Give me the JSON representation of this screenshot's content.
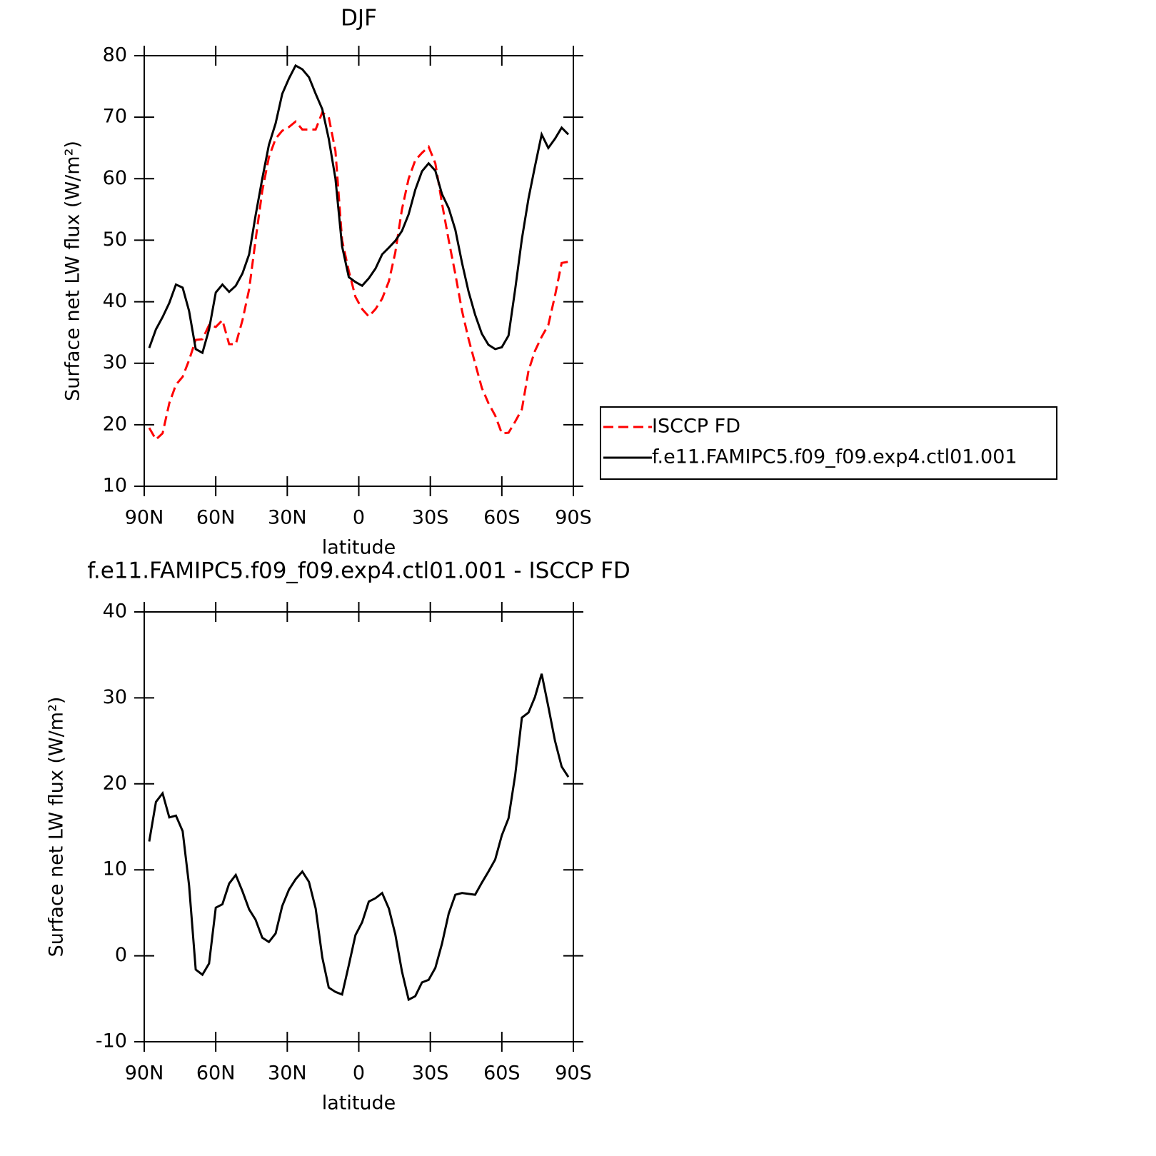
{
  "chart_data": [
    {
      "type": "line",
      "title": "DJF",
      "xlabel": "latitude",
      "ylabel": "Surface net LW flux (W/m²)",
      "x": [
        87.9,
        85.1,
        82.3,
        79.5,
        76.7,
        73.9,
        71.2,
        68.4,
        65.6,
        62.8,
        60.0,
        57.2,
        54.4,
        51.6,
        48.8,
        46.0,
        43.3,
        40.5,
        37.7,
        34.9,
        32.1,
        29.3,
        26.5,
        23.7,
        20.9,
        18.1,
        15.3,
        12.6,
        9.8,
        7.0,
        4.2,
        1.4,
        -1.4,
        -4.2,
        -7.0,
        -9.8,
        -12.6,
        -15.3,
        -18.1,
        -20.9,
        -23.7,
        -26.5,
        -29.3,
        -32.1,
        -34.9,
        -37.7,
        -40.5,
        -43.3,
        -46.0,
        -48.8,
        -51.6,
        -54.4,
        -57.2,
        -60.0,
        -62.8,
        -65.6,
        -68.4,
        -71.2,
        -73.9,
        -76.7,
        -79.5,
        -82.3,
        -85.1,
        -87.9
      ],
      "series": [
        {
          "name": "ISCCP FD",
          "color": "#ff0000",
          "line_style": "dashed",
          "values": [
            19.5,
            17.6,
            18.6,
            23.5,
            26.5,
            27.8,
            30.5,
            33.8,
            33.9,
            36.2,
            35.9,
            37,
            33.1,
            33.1,
            37,
            42,
            50,
            58,
            63.5,
            66.5,
            67.8,
            68.4,
            69.3,
            68,
            68,
            68,
            70.8,
            70,
            64.5,
            50,
            45,
            40.8,
            38.8,
            37.6,
            38.8,
            40.5,
            43.3,
            48,
            55,
            60,
            63,
            64.2,
            65.2,
            62.5,
            56,
            50,
            44.5,
            38.5,
            34,
            30,
            26,
            23.5,
            21.5,
            18.6,
            18.7,
            20.5,
            22.5,
            28.8,
            32,
            34.3,
            36.2,
            41,
            46.3,
            46.5
          ]
        },
        {
          "name": "f.e11.FAMIPC5.f09_f09.exp4.ctl01.001",
          "color": "#000000",
          "line_style": "solid",
          "values": [
            32.5,
            35.5,
            37.5,
            39.8,
            42.8,
            42.3,
            38.5,
            32.3,
            31.7,
            35.5,
            41.5,
            42.8,
            41.6,
            42.6,
            44.6,
            47.7,
            54,
            60,
            65.5,
            69,
            73.8,
            76.3,
            78.4,
            77.8,
            76.5,
            73.8,
            71.3,
            66.5,
            60,
            49,
            44,
            43.2,
            42.6,
            43.8,
            45.4,
            47.7,
            48.8,
            49.9,
            51.5,
            54.2,
            58.2,
            61.2,
            62.5,
            61.3,
            57.5,
            55.2,
            51.7,
            46.3,
            41.7,
            37.9,
            34.8,
            33,
            32.3,
            32.6,
            34.5,
            42,
            50.2,
            56.8,
            62,
            67.2,
            65,
            66.5,
            68.3,
            67.2
          ]
        }
      ],
      "xlim": [
        90,
        -90
      ],
      "xticks": [
        {
          "value": 90,
          "label": "90N"
        },
        {
          "value": 60,
          "label": "60N"
        },
        {
          "value": 30,
          "label": "30N"
        },
        0,
        {
          "value": -30,
          "label": "30S"
        },
        {
          "value": -60,
          "label": "60S"
        },
        {
          "value": -90,
          "label": "90S"
        }
      ],
      "ylim": [
        10,
        80
      ],
      "yticks": [
        10,
        20,
        30,
        40,
        50,
        60,
        70,
        80
      ],
      "legend_position": "right"
    },
    {
      "type": "line",
      "title": "f.e11.FAMIPC5.f09_f09.exp4.ctl01.001 - ISCCP FD",
      "xlabel": "latitude",
      "ylabel": "Surface net LW flux (W/m²)",
      "x": [
        87.9,
        85.1,
        82.3,
        79.5,
        76.7,
        73.9,
        71.2,
        68.4,
        65.6,
        62.8,
        60.0,
        57.2,
        54.4,
        51.6,
        48.8,
        46.0,
        43.3,
        40.5,
        37.7,
        34.9,
        32.1,
        29.3,
        26.5,
        23.7,
        20.9,
        18.1,
        15.3,
        12.6,
        9.8,
        7.0,
        4.2,
        1.4,
        -1.4,
        -4.2,
        -7.0,
        -9.8,
        -12.6,
        -15.3,
        -18.1,
        -20.9,
        -23.7,
        -26.5,
        -29.3,
        -32.1,
        -34.9,
        -37.7,
        -40.5,
        -43.3,
        -46.0,
        -48.8,
        -51.6,
        -54.4,
        -57.2,
        -60.0,
        -62.8,
        -65.6,
        -68.4,
        -71.2,
        -73.9,
        -76.7,
        -79.5,
        -82.3,
        -85.1,
        -87.9
      ],
      "color": "#000000",
      "values": [
        13.3,
        17.9,
        18.9,
        16.1,
        16.3,
        14.5,
        8.2,
        -1.6,
        -2.2,
        -0.9,
        5.6,
        6,
        8.4,
        9.4,
        7.5,
        5.4,
        4.2,
        2.1,
        1.6,
        2.6,
        5.8,
        7.7,
        8.9,
        9.8,
        8.6,
        5.5,
        -0.2,
        -3.7,
        -4.2,
        -4.5,
        -1.1,
        2.4,
        3.9,
        6.3,
        6.7,
        7.3,
        5.5,
        2.5,
        -1.8,
        -5.1,
        -4.7,
        -3.1,
        -2.8,
        -1.4,
        1.4,
        4.9,
        7.1,
        7.3,
        7.2,
        7.1,
        8.5,
        9.8,
        11.2,
        14,
        16,
        21,
        27.7,
        28.3,
        30.1,
        32.8,
        29,
        25,
        22,
        20.8
      ],
      "xlim": [
        90,
        -90
      ],
      "xticks": [
        {
          "value": 90,
          "label": "90N"
        },
        {
          "value": 60,
          "label": "60N"
        },
        {
          "value": 30,
          "label": "30N"
        },
        0,
        {
          "value": -30,
          "label": "30S"
        },
        {
          "value": -60,
          "label": "60S"
        },
        {
          "value": -90,
          "label": "90S"
        }
      ],
      "ylim": [
        -10,
        40
      ],
      "yticks": [
        -10,
        0,
        10,
        20,
        30,
        40
      ]
    }
  ]
}
